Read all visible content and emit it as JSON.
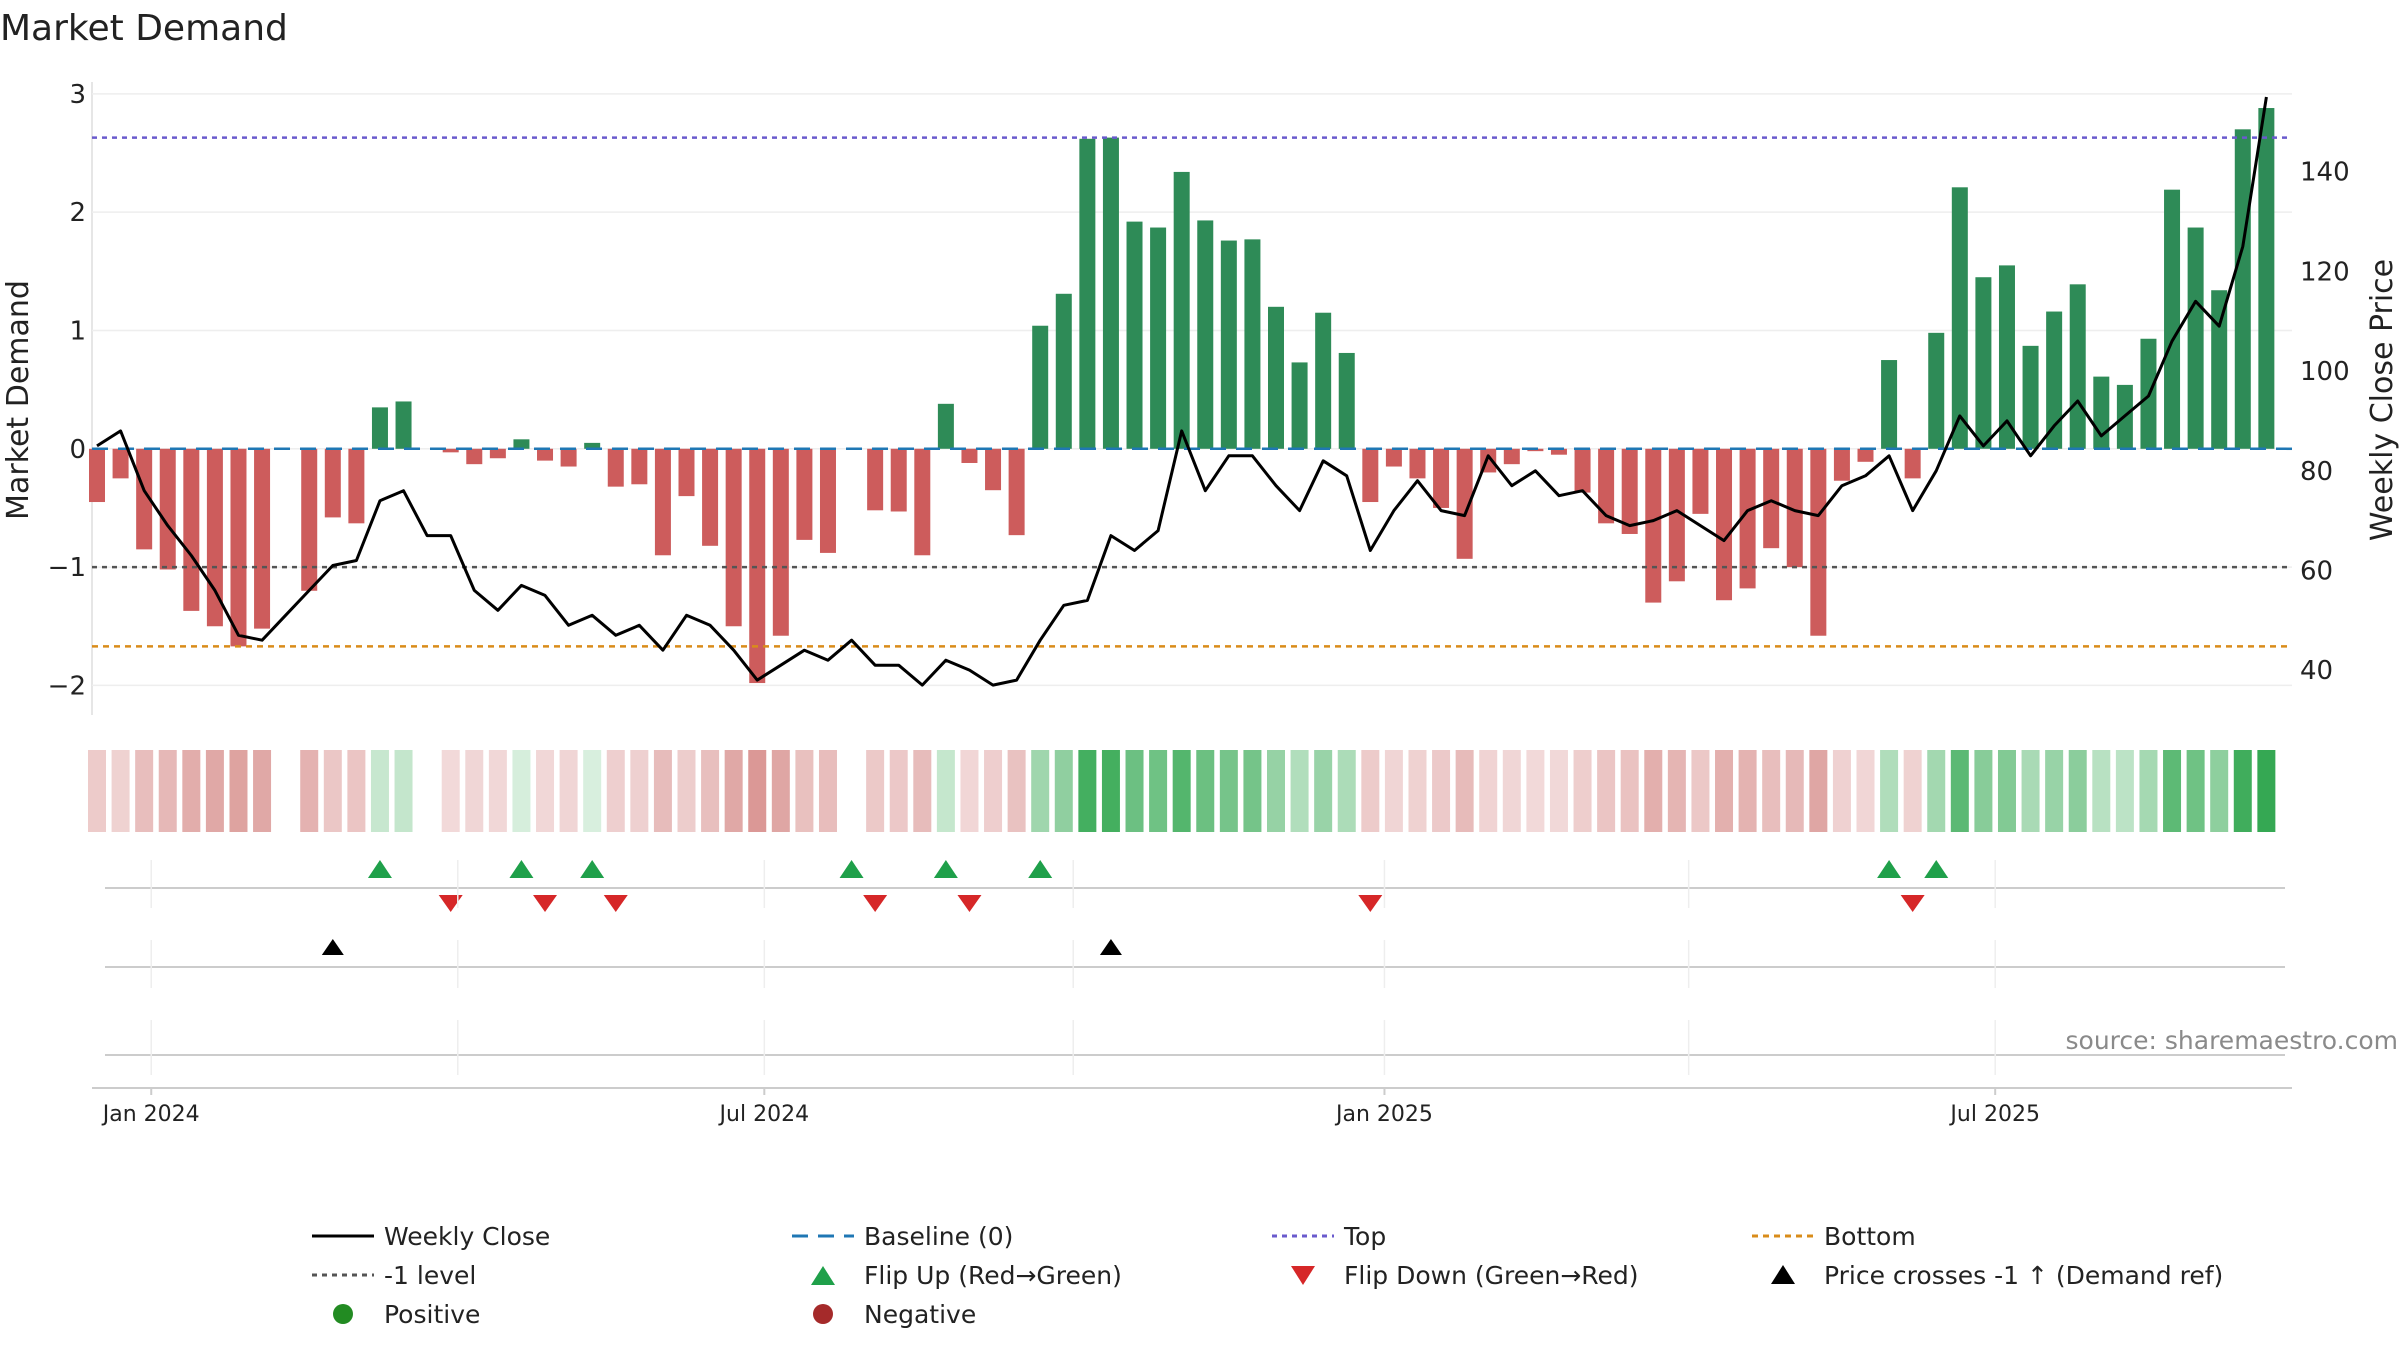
{
  "chart_data": {
    "type": "bar",
    "title": "Market Demand",
    "ylabel": "Market Demand",
    "y2label": "Weekly Close Price",
    "ylim": [
      -2.25,
      3.1
    ],
    "y2lim": [
      31,
      158
    ],
    "yticks": [
      -2,
      -1,
      0,
      1,
      2,
      3
    ],
    "y2ticks": [
      40,
      60,
      80,
      100,
      120,
      140
    ],
    "x_labels": [
      {
        "label": "Jan 2024",
        "week": 2.3
      },
      {
        "label": "Jul 2024",
        "week": 28.3
      },
      {
        "label": "Jan 2025",
        "week": 54.6
      },
      {
        "label": "Jul 2025",
        "week": 80.5
      }
    ],
    "reference_lines": {
      "baseline": 0,
      "top": 2.63,
      "minus_one": -1,
      "bottom": -1.67
    },
    "series": [
      {
        "name": "Market Demand",
        "values": [
          -0.45,
          -0.25,
          -0.85,
          -1.02,
          -1.37,
          -1.5,
          -1.67,
          -1.52,
          0.0,
          -1.2,
          -0.58,
          -0.63,
          0.35,
          0.4,
          0.0,
          -0.03,
          -0.13,
          -0.08,
          0.08,
          -0.1,
          -0.15,
          0.05,
          -0.32,
          -0.3,
          -0.9,
          -0.4,
          -0.82,
          -1.5,
          -1.98,
          -1.58,
          -0.77,
          -0.88,
          0.0,
          -0.52,
          -0.53,
          -0.9,
          0.38,
          -0.12,
          -0.35,
          -0.73,
          1.04,
          1.31,
          2.62,
          2.63,
          1.92,
          1.87,
          2.34,
          1.93,
          1.76,
          1.77,
          1.2,
          0.73,
          1.15,
          0.81,
          -0.45,
          -0.15,
          -0.25,
          -0.5,
          -0.93,
          -0.2,
          -0.13,
          -0.02,
          -0.05,
          -0.37,
          -0.63,
          -0.72,
          -1.3,
          -1.12,
          -0.55,
          -1.28,
          -1.18,
          -0.84,
          -1.0,
          -1.58,
          -0.27,
          -0.11,
          0.75,
          -0.25,
          0.98,
          2.21,
          1.45,
          1.55,
          0.87,
          1.16,
          1.39,
          0.61,
          0.54,
          0.93,
          2.19,
          1.87,
          1.34,
          2.7,
          2.88
        ]
      },
      {
        "name": "Weekly Close",
        "values": [
          85,
          88,
          76,
          69,
          63,
          56,
          47,
          46,
          51,
          56,
          61,
          62,
          74,
          76,
          67,
          67,
          56,
          52,
          57,
          55,
          49,
          51,
          47,
          49,
          44,
          51,
          49,
          44,
          38,
          41,
          44,
          42,
          46,
          41,
          41,
          37,
          42,
          40,
          37,
          38,
          46,
          53,
          54,
          67,
          64,
          68,
          88,
          76,
          83,
          83,
          77,
          72,
          82,
          79,
          64,
          72,
          78,
          72,
          71,
          83,
          77,
          80,
          75,
          76,
          71,
          69,
          70,
          72,
          69,
          66,
          72,
          74,
          72,
          71,
          77,
          79,
          83,
          72,
          80,
          91,
          85,
          90,
          83,
          89,
          94,
          87,
          91,
          95,
          106,
          114,
          109,
          125,
          155
        ]
      }
    ],
    "flip_up_weeks": [
      12,
      18,
      21,
      32,
      36,
      40,
      76,
      78
    ],
    "flip_down_weeks": [
      15,
      19,
      22,
      33,
      37,
      54,
      77
    ],
    "price_cross_weeks": [
      10,
      43
    ]
  },
  "legend": {
    "weekly_close": "Weekly Close",
    "baseline": "Baseline (0)",
    "top": "Top",
    "bottom": "Bottom",
    "minus_one": "-1 level",
    "flip_up": "Flip Up (Red→Green)",
    "flip_down": "Flip Down (Green→Red)",
    "price_cross": "Price crosses -1 ↑ (Demand ref)",
    "positive": "Positive",
    "negative": "Negative"
  },
  "source": "source: sharemaestro.com",
  "colors": {
    "positive_bar": "#2e8b57",
    "negative_bar": "#cd5c5c",
    "price_line": "#000000",
    "baseline": "#1f77b4",
    "top": "#6a5acd",
    "bottom": "#d98c1a",
    "minus_one": "#555555",
    "flip_up": "#1fa04a",
    "flip_down": "#d62728",
    "positive_marker": "#228b22",
    "negative_marker": "#a52a2a"
  }
}
